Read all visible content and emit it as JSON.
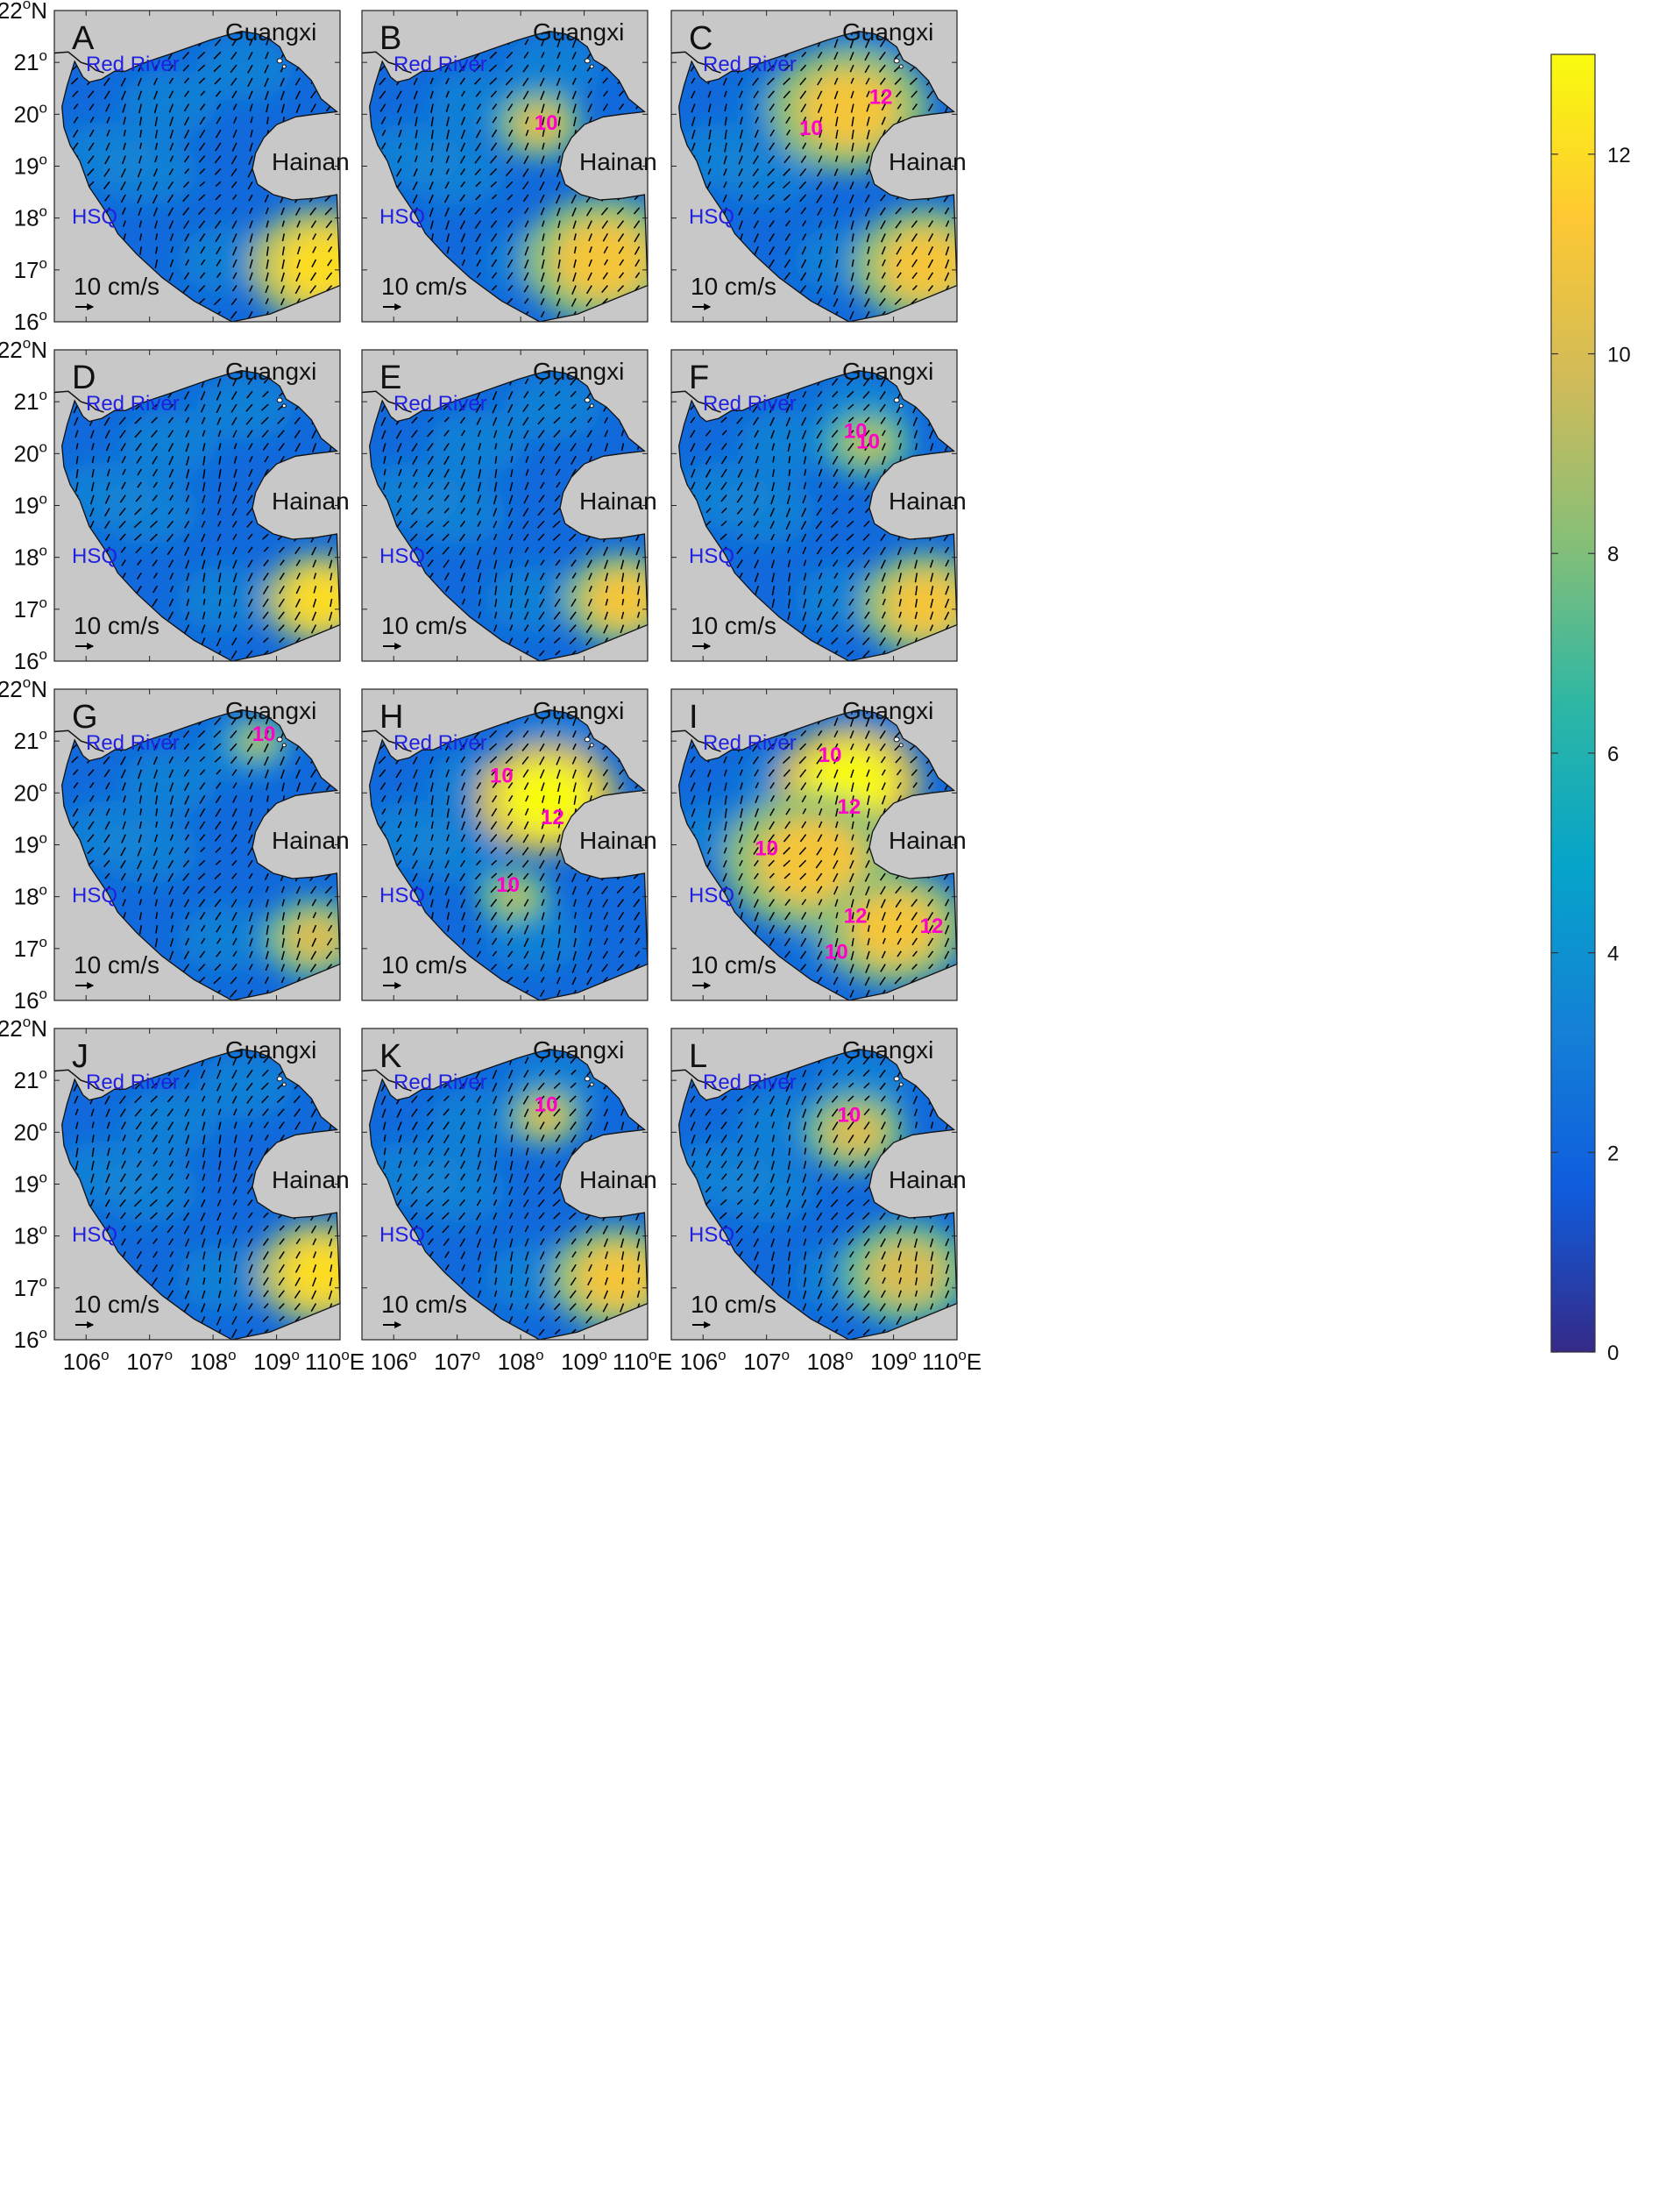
{
  "chart_data": {
    "type": "heatmap",
    "map": {
      "xlim": [
        105.5,
        110
      ],
      "ylim": [
        16,
        22
      ],
      "x_ticks": [
        106,
        107,
        108,
        109,
        110
      ],
      "y_ticks": [
        16,
        17,
        18,
        19,
        20,
        21,
        22
      ],
      "x_tick_labels": [
        "106",
        "107",
        "108",
        "109",
        "110"
      ],
      "x_last_suffix": "E",
      "y_tick_labels": [
        "16",
        "17",
        "18",
        "19",
        "20",
        "21",
        "22"
      ],
      "y_last_suffix": "N",
      "degree_symbol": "o",
      "region_labels": {
        "guangxi": "Guangxi",
        "hainan": "Hainan",
        "red_river": "Red River",
        "hsq": "HSQ"
      },
      "scale_label": "10 cm/s"
    },
    "colorbar": {
      "range": [
        0,
        13
      ],
      "ticks": [
        0,
        2,
        4,
        6,
        8,
        10,
        12
      ],
      "tick_labels": [
        "0",
        "2",
        "4",
        "6",
        "8",
        "10",
        "12"
      ],
      "colormap": "parula",
      "colors": [
        "#352a87",
        "#0f5cdd",
        "#1481d6",
        "#06a4ca",
        "#2eb7a4",
        "#87bf77",
        "#d1bb59",
        "#fec832",
        "#f9fb0e"
      ]
    },
    "contour_color": "#ff00c8",
    "panels": [
      {
        "label": "A",
        "hotspots": [
          [
            109.7,
            17.1,
            1.0,
            12
          ]
        ],
        "contours": []
      },
      {
        "label": "B",
        "hotspots": [
          [
            108.3,
            19.8,
            0.6,
            10
          ],
          [
            109.3,
            17.2,
            1.1,
            11
          ]
        ],
        "contours": [
          {
            "text": "10",
            "lon": 108.4,
            "lat": 19.7
          }
        ]
      },
      {
        "label": "C",
        "hotspots": [
          [
            108.3,
            20.1,
            1.1,
            11
          ],
          [
            109.5,
            17.1,
            1.0,
            11
          ]
        ],
        "contours": [
          {
            "text": "10",
            "lon": 107.7,
            "lat": 19.6
          },
          {
            "text": "12",
            "lon": 108.8,
            "lat": 20.2
          }
        ]
      },
      {
        "label": "D",
        "hotspots": [
          [
            109.7,
            17.2,
            0.8,
            12
          ]
        ],
        "contours": []
      },
      {
        "label": "E",
        "hotspots": [
          [
            109.6,
            17.2,
            0.8,
            11
          ]
        ],
        "contours": []
      },
      {
        "label": "F",
        "hotspots": [
          [
            108.6,
            20.2,
            0.6,
            9
          ],
          [
            109.5,
            17.1,
            0.9,
            11
          ]
        ],
        "contours": [
          {
            "text": "10",
            "lon": 108.4,
            "lat": 20.3
          },
          {
            "text": "10",
            "lon": 108.6,
            "lat": 20.1
          }
        ]
      },
      {
        "label": "G",
        "hotspots": [
          [
            108.7,
            21.0,
            0.4,
            9
          ],
          [
            109.6,
            17.2,
            0.7,
            10
          ]
        ],
        "contours": [
          {
            "text": "10",
            "lon": 108.8,
            "lat": 21.0
          }
        ]
      },
      {
        "label": "H",
        "hotspots": [
          [
            108.4,
            19.9,
            1.0,
            13
          ],
          [
            107.9,
            18.0,
            0.5,
            9
          ]
        ],
        "contours": [
          {
            "text": "10",
            "lon": 107.7,
            "lat": 20.2
          },
          {
            "text": "12",
            "lon": 108.5,
            "lat": 19.4
          },
          {
            "text": "10",
            "lon": 107.8,
            "lat": 18.1
          }
        ]
      },
      {
        "label": "I",
        "hotspots": [
          [
            108.3,
            20.2,
            1.0,
            13
          ],
          [
            107.7,
            18.7,
            1.2,
            11
          ],
          [
            109.0,
            17.4,
            1.0,
            11
          ]
        ],
        "contours": [
          {
            "text": "10",
            "lon": 108.0,
            "lat": 20.6
          },
          {
            "text": "12",
            "lon": 108.3,
            "lat": 19.6
          },
          {
            "text": "10",
            "lon": 107.0,
            "lat": 18.8
          },
          {
            "text": "12",
            "lon": 108.4,
            "lat": 17.5
          },
          {
            "text": "10",
            "lon": 108.1,
            "lat": 16.8
          },
          {
            "text": "12",
            "lon": 109.6,
            "lat": 17.3
          }
        ]
      },
      {
        "label": "J",
        "hotspots": [
          [
            109.7,
            17.3,
            0.9,
            12
          ]
        ],
        "contours": []
      },
      {
        "label": "K",
        "hotspots": [
          [
            108.4,
            20.3,
            0.5,
            10
          ],
          [
            109.5,
            17.2,
            0.9,
            11
          ]
        ],
        "contours": [
          {
            "text": "10",
            "lon": 108.4,
            "lat": 20.4
          }
        ]
      },
      {
        "label": "L",
        "hotspots": [
          [
            108.4,
            20.0,
            0.7,
            10
          ],
          [
            109.2,
            17.3,
            0.9,
            10
          ]
        ],
        "contours": [
          {
            "text": "10",
            "lon": 108.3,
            "lat": 20.2
          }
        ]
      }
    ]
  }
}
